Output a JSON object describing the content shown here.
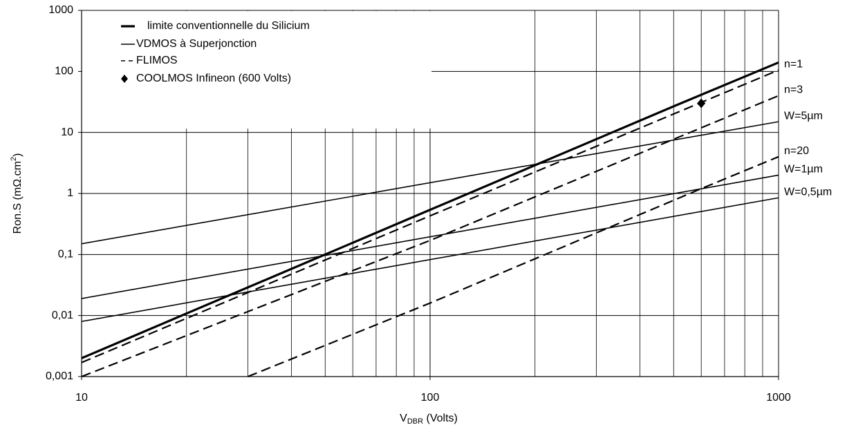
{
  "chart_data": {
    "type": "line",
    "log_x": true,
    "log_y": true,
    "grid": true,
    "x_label": {
      "main": "V",
      "sub": "DBR",
      "rest": " (Volts)"
    },
    "y_label": {
      "main": "Ron.S (mΩ.cm",
      "sup": "2",
      "rest": ")"
    },
    "xlim": [
      10,
      1000
    ],
    "xticks": [
      10,
      100,
      1000
    ],
    "xminor": [
      20,
      30,
      40,
      50,
      60,
      70,
      80,
      90,
      200,
      300,
      400,
      500,
      600,
      700,
      800,
      900
    ],
    "ylim": [
      0.001,
      1000
    ],
    "yticks": [
      {
        "value": 0.001,
        "label": "0,001"
      },
      {
        "value": 0.01,
        "label": "0,01"
      },
      {
        "value": 0.1,
        "label": "0,1"
      },
      1,
      10,
      100,
      1000
    ],
    "series": [
      {
        "name": "limite conventionnelle du Silicium",
        "style": "thick",
        "color": "#000000",
        "curves": [
          {
            "x": [
              10,
              20,
              50,
              100,
              200,
              500,
              1000
            ],
            "values": [
              0.002,
              0.0108,
              0.1,
              0.54,
              2.9,
              26.8,
              140
            ]
          }
        ]
      },
      {
        "name": "VDMOS à Superjonction",
        "style": "solid",
        "color": "#000000",
        "curves": [
          {
            "label": "W=5µm",
            "x": [
              10,
              1000
            ],
            "values": [
              0.15,
              15
            ]
          },
          {
            "label": "W=1µm",
            "x": [
              10,
              1000
            ],
            "values": [
              0.019,
              2
            ]
          },
          {
            "label": "W=0,5µm",
            "x": [
              10,
              1000
            ],
            "values": [
              0.008,
              0.85
            ]
          }
        ]
      },
      {
        "name": "FLIMOS",
        "style": "dashed",
        "color": "#000000",
        "curves": [
          {
            "label": "n=1",
            "x": [
              10,
              100,
              1000
            ],
            "values": [
              0.0017,
              0.43,
              105
            ]
          },
          {
            "label": "n=3",
            "x": [
              10,
              100,
              1000
            ],
            "values": [
              0.001,
              0.17,
              40
            ]
          },
          {
            "label": "n=20",
            "x": [
              30,
              100,
              600,
              1000
            ],
            "values": [
              0.001,
              0.016,
              1.2,
              4
            ]
          }
        ]
      },
      {
        "name": "COOLMOS Infineon (600 Volts)",
        "style": "diamond",
        "color": "#000000",
        "curves": [
          {
            "x": [
              600
            ],
            "values": [
              30
            ]
          }
        ]
      }
    ]
  }
}
